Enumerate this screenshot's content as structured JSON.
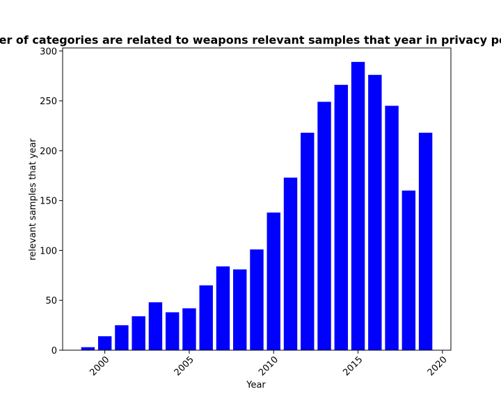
{
  "chart_data": {
    "type": "bar",
    "title": "Number of categories are related to weapons relevant samples that year in privacy policies",
    "xlabel": "Year",
    "ylabel": "relevant samples that year",
    "x": [
      1999,
      2000,
      2001,
      2002,
      2003,
      2004,
      2005,
      2006,
      2007,
      2008,
      2009,
      2010,
      2011,
      2012,
      2013,
      2014,
      2015,
      2016,
      2017,
      2018,
      2019
    ],
    "values": [
      3,
      14,
      25,
      34,
      48,
      38,
      42,
      65,
      84,
      81,
      101,
      138,
      173,
      218,
      249,
      266,
      289,
      276,
      245,
      160,
      218
    ],
    "xlim": [
      1997.5,
      2020.5
    ],
    "ylim": [
      0,
      303
    ],
    "xticks": [
      2000,
      2005,
      2010,
      2015,
      2020
    ],
    "yticks": [
      0,
      50,
      100,
      150,
      200,
      250,
      300
    ],
    "bar_color": "#0000ff",
    "grid": false,
    "legend": "none"
  }
}
